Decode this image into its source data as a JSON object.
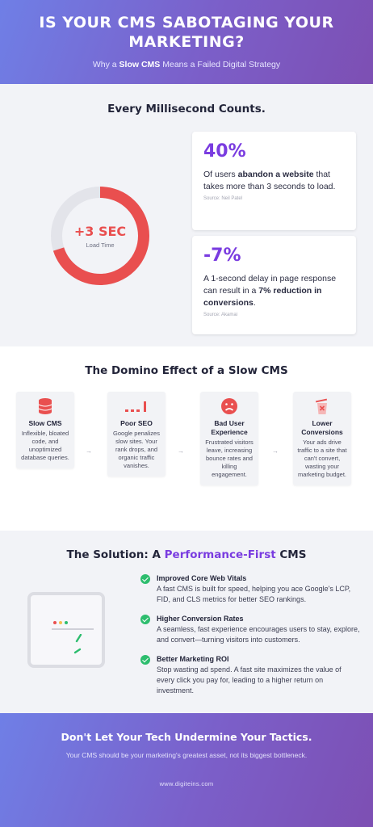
{
  "header": {
    "title": "IS YOUR CMS SABOTAGING YOUR MARKETING?",
    "subtitle_pre": "Why a ",
    "subtitle_bold": "Slow CMS",
    "subtitle_post": " Means a Failed Digital Strategy"
  },
  "speed": {
    "heading": "Every Millisecond Counts.",
    "ring": {
      "value": "+3 SEC",
      "label": "Load Time",
      "fill_fraction": 0.7,
      "fill_color": "#e94f4f",
      "track_color": "#e3e4ea"
    },
    "stats": [
      {
        "number": "40%",
        "text_pre": "Of users ",
        "text_bold": "abandon a website",
        "text_post": " that takes more than 3 seconds to load.",
        "source": "Source: Neil Patel"
      },
      {
        "number": "-7%",
        "text_pre": "A 1-second delay in page response can result in a ",
        "text_bold": "7% reduction in conversions",
        "text_post": ".",
        "source": "Source: Akamai"
      }
    ]
  },
  "domino": {
    "heading": "The Domino Effect of a Slow CMS",
    "arrow": "→",
    "steps": [
      {
        "icon": "database-icon",
        "title": "Slow CMS",
        "desc": "Inflexible, bloated code, and unoptimized database queries."
      },
      {
        "icon": "bar-chart-icon",
        "title": "Poor SEO",
        "desc": "Google penalizes slow sites. Your rank drops, and organic traffic vanishes."
      },
      {
        "icon": "frown-face-icon",
        "title": "Bad User Experience",
        "desc": "Frustrated visitors leave, increasing bounce rates and killing engagement."
      },
      {
        "icon": "trash-bin-icon",
        "title": "Lower Conversions",
        "desc": "Your ads drive traffic to a site that can't convert, wasting your marketing budget."
      }
    ]
  },
  "solution": {
    "heading_pre": "The Solution: A ",
    "heading_highlight": "Performance-First",
    "heading_post": " CMS",
    "items": [
      {
        "title": "Improved Core Web Vitals",
        "desc": "A fast CMS is built for speed, helping you ace Google's LCP, FID, and CLS metrics for better SEO rankings."
      },
      {
        "title": "Higher Conversion Rates",
        "desc": "A seamless, fast experience encourages users to stay, explore, and convert—turning visitors into customers."
      },
      {
        "title": "Better Marketing ROI",
        "desc": "Stop wasting ad spend. A fast site maximizes the value of every click you pay for, leading to a higher return on investment."
      }
    ]
  },
  "footer": {
    "title": "Don't Let Your Tech Undermine Your Tactics.",
    "subtitle": "Your CMS should be your marketing's greatest asset, not its biggest bottleneck.",
    "url": "www.digiteins.com"
  }
}
